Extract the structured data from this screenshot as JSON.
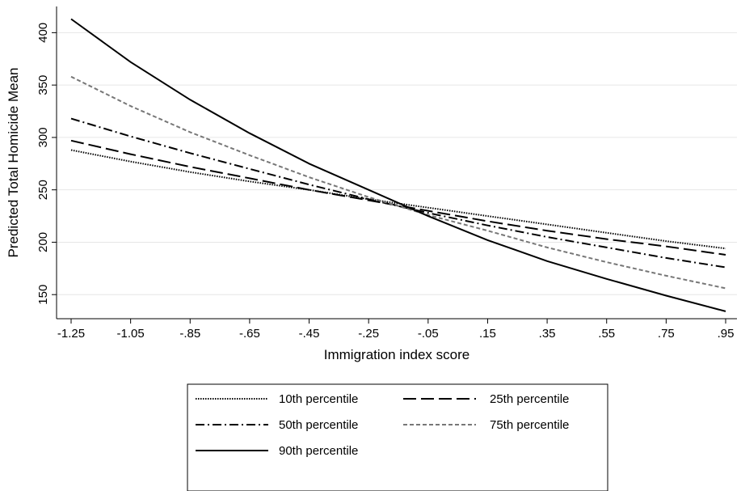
{
  "chart_data": {
    "type": "line",
    "title": "",
    "xlabel": "Immigration index score",
    "ylabel": "Predicted Total Homicide Mean",
    "x": [
      -1.25,
      -1.05,
      -0.85,
      -0.65,
      -0.45,
      -0.25,
      -0.05,
      0.15,
      0.35,
      0.55,
      0.75,
      0.95
    ],
    "x_tick_labels": [
      "-1.25",
      "-1.05",
      "-.85",
      "-.65",
      "-.45",
      "-.25",
      "-.05",
      ".15",
      ".35",
      ".55",
      ".75",
      ".95"
    ],
    "y_ticks": [
      150,
      200,
      250,
      300,
      350,
      400
    ],
    "y_tick_labels": [
      "150",
      "200",
      "250",
      "300",
      "350",
      "400"
    ],
    "xlim": [
      -1.25,
      0.95
    ],
    "ylim": [
      127,
      425
    ],
    "grid": true,
    "legend_position": "bottom",
    "series": [
      {
        "name": "10th percentile",
        "color": "#000000",
        "dash": "dotted",
        "values": [
          288,
          277,
          267,
          258,
          250,
          241,
          233,
          225,
          217,
          209,
          201,
          194
        ]
      },
      {
        "name": "25th percentile",
        "color": "#000000",
        "dash": "long-dash",
        "values": [
          297,
          284,
          272,
          261,
          250,
          240,
          230,
          220,
          211,
          203,
          196,
          188
        ]
      },
      {
        "name": "50th percentile",
        "color": "#000000",
        "dash": "dash-dot",
        "values": [
          318,
          301,
          285,
          270,
          255,
          241,
          228,
          216,
          205,
          195,
          185,
          176
        ]
      },
      {
        "name": "75th percentile",
        "color": "#777777",
        "dash": "short-dash",
        "values": [
          358,
          330,
          305,
          283,
          262,
          243,
          226,
          211,
          195,
          181,
          168,
          156
        ]
      },
      {
        "name": "90th percentile",
        "color": "#000000",
        "dash": "solid",
        "values": [
          413,
          372,
          336,
          304,
          275,
          250,
          225,
          202,
          182,
          165,
          149,
          134
        ]
      }
    ]
  }
}
